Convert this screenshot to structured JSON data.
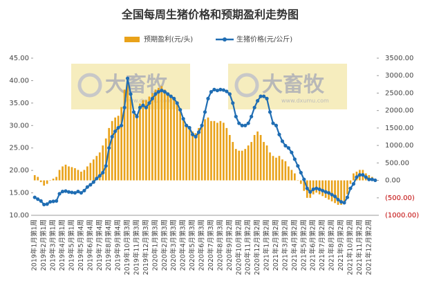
{
  "chart_data": {
    "type": "bar-line",
    "title": "全国每周生猪价格和预期盈利走势图",
    "categories": [
      "2019年1月第1周",
      null,
      null,
      "2019年2月第1周",
      null,
      null,
      "2019年3月第1周",
      null,
      null,
      "2019年4月第1周",
      null,
      null,
      "2019年5月第1周",
      null,
      null,
      "2019年5月第4周",
      null,
      null,
      "2019年6月第4周",
      null,
      null,
      "2019年7月第4周",
      null,
      null,
      "2019年8月第4周",
      null,
      null,
      "2019年9月第4周",
      null,
      null,
      "2019年10月第3周",
      null,
      null,
      "2019年11月第3周",
      null,
      null,
      "2019年12月第3周",
      null,
      null,
      "2020年1月第3周",
      null,
      null,
      "2020年2月第3周",
      null,
      null,
      "2020年3月第3周",
      null,
      null,
      "2020年4月第3周",
      null,
      null,
      "2020年5月第3周",
      null,
      null,
      "2020年6月第3周",
      null,
      null,
      "2020年7月第3周",
      null,
      null,
      "2020年8月第3周",
      null,
      null,
      "2020年9月第2周",
      null,
      null,
      "2020年10月第2周",
      null,
      null,
      "2020年11月第2周",
      null,
      null,
      "2020年12月第2周",
      null,
      null,
      "2021年1月第2周",
      null,
      null,
      "2021年2月第2周",
      null,
      null,
      "2021年3月第2周",
      null,
      null,
      "2021年4月第2周",
      null,
      null,
      "2021年5月第2周",
      null,
      null,
      "2021年6月第2周",
      null,
      null,
      "2021年7月第2周",
      null,
      null,
      "2021年8月第2周",
      null,
      null,
      "2021年9月第2周",
      null,
      null,
      "2021年10月第2周",
      null,
      null,
      "2021年11月第2周",
      null,
      null,
      "2021年12月第2周",
      null,
      null
    ],
    "series": [
      {
        "name": "预期盈利(元/头)",
        "kind": "bar",
        "axis": "y2",
        "color": "#e9a21a",
        "values": [
          150,
          100,
          -50,
          -150,
          -100,
          0,
          50,
          100,
          300,
          400,
          450,
          400,
          380,
          350,
          300,
          250,
          300,
          400,
          500,
          600,
          700,
          800,
          1000,
          1200,
          1500,
          1700,
          1800,
          1850,
          2100,
          2600,
          2900,
          2400,
          1900,
          1900,
          2200,
          2300,
          2300,
          2400,
          2500,
          2600,
          2650,
          2700,
          2600,
          2500,
          2400,
          2300,
          2200,
          2000,
          1800,
          1600,
          1500,
          1400,
          1350,
          1500,
          1600,
          1750,
          1800,
          1700,
          1700,
          1650,
          1700,
          1650,
          1500,
          1300,
          1100,
          900,
          850,
          850,
          900,
          1000,
          1100,
          1300,
          1400,
          1300,
          1100,
          1000,
          800,
          700,
          650,
          700,
          600,
          550,
          400,
          300,
          200,
          0,
          -100,
          -300,
          -500,
          -500,
          -400,
          -350,
          -400,
          -450,
          -500,
          -550,
          -600,
          -650,
          -700,
          -700,
          -650,
          -400,
          -100,
          200,
          250,
          300,
          300,
          200,
          150,
          100,
          50
        ]
      },
      {
        "name": "生猪价格(元/公斤)",
        "kind": "line",
        "axis": "y",
        "color": "#1f6db3",
        "values": [
          14.0,
          13.6,
          13.2,
          12.4,
          12.5,
          13.0,
          13.1,
          13.2,
          14.8,
          15.3,
          15.4,
          15.2,
          15.1,
          15.0,
          15.3,
          15.0,
          15.5,
          16.3,
          16.8,
          17.4,
          18.2,
          18.8,
          19.5,
          21.0,
          25.0,
          27.5,
          28.7,
          29.5,
          30.0,
          34.0,
          40.5,
          37.0,
          33.0,
          32.0,
          34.0,
          34.5,
          34.0,
          35.0,
          36.0,
          37.0,
          37.5,
          37.8,
          37.5,
          37.0,
          36.5,
          36.0,
          35.0,
          33.5,
          31.5,
          30.0,
          29.5,
          28.0,
          27.5,
          28.5,
          30.0,
          33.0,
          36.0,
          37.5,
          38.0,
          37.8,
          38.0,
          37.9,
          37.6,
          37.0,
          35.0,
          32.0,
          30.5,
          30.0,
          30.0,
          30.5,
          32.0,
          34.0,
          35.5,
          36.5,
          36.5,
          36.0,
          33.0,
          30.5,
          30.0,
          28.0,
          26.5,
          25.5,
          25.0,
          24.0,
          22.5,
          21.0,
          19.5,
          18.0,
          16.0,
          15.2,
          15.8,
          16.0,
          15.8,
          15.5,
          15.2,
          15.0,
          14.6,
          14.2,
          13.5,
          13.0,
          12.8,
          14.0,
          16.0,
          17.0,
          18.5,
          19.0,
          19.0,
          18.5,
          18.0,
          18.0,
          17.8
        ]
      }
    ],
    "ylim": [
      10,
      45
    ],
    "yticks": [
      {
        "value": 10,
        "label": "10.00"
      },
      {
        "value": 15,
        "label": "15.00"
      },
      {
        "value": 20,
        "label": "20.00"
      },
      {
        "value": 25,
        "label": "25.00"
      },
      {
        "value": 30,
        "label": "30.00"
      },
      {
        "value": 35,
        "label": "35.00"
      },
      {
        "value": 40,
        "label": "40.00"
      },
      {
        "value": 45,
        "label": "45.00"
      }
    ],
    "y2lim": [
      -1000,
      3500
    ],
    "y2ticks": [
      {
        "value": -1000,
        "label": "(1000.00)"
      },
      {
        "value": -500,
        "label": "(500.00)"
      },
      {
        "value": 0,
        "label": "0.00"
      },
      {
        "value": 500,
        "label": "500.00"
      },
      {
        "value": 1000,
        "label": "1000.00"
      },
      {
        "value": 1500,
        "label": "1500.00"
      },
      {
        "value": 2000,
        "label": "2000.00"
      },
      {
        "value": 2500,
        "label": "2500.00"
      },
      {
        "value": 3000,
        "label": "3000.00"
      },
      {
        "value": 3500,
        "label": "3500.00"
      }
    ],
    "legend": "top"
  },
  "watermarks": [
    {
      "brand": "大畜牧",
      "url": "www.dxumu.com"
    },
    {
      "brand": "大畜牧",
      "url": "www.dxumu.com"
    }
  ]
}
